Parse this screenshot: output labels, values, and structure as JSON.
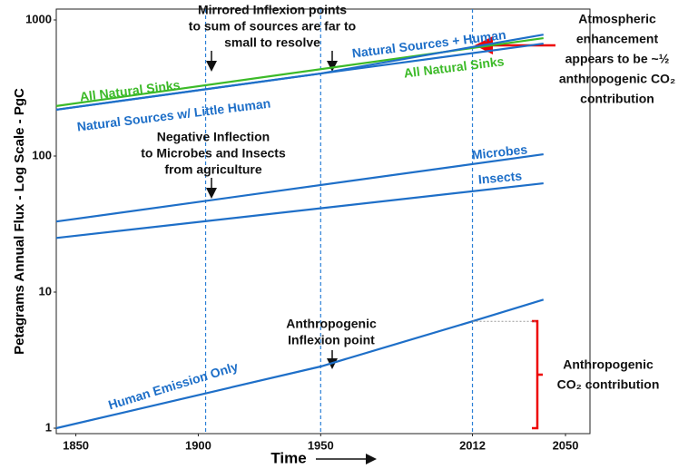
{
  "chart_data": {
    "type": "line",
    "y_label": "Petagrams  Annual Flux - Log Scale - PgC",
    "x_label": "Time",
    "log_scale": true,
    "xlim": [
      1842,
      2060
    ],
    "xticks": [
      1850,
      1900,
      1950,
      2012,
      2050
    ],
    "ylim": [
      0.912,
      1202
    ],
    "yticks": [
      1,
      10,
      100,
      1000
    ],
    "vlines": [
      1903,
      1950,
      2012
    ],
    "series": [
      {
        "name": "All Natural Sinks",
        "color": "#3cba28",
        "x": [
          1842,
          2041
        ],
        "values": [
          233,
          735
        ]
      },
      {
        "name": "Natural Sources w/ Little Human",
        "color": "#1e6fc8",
        "x": [
          1842,
          1950,
          2041
        ],
        "values": [
          219,
          404,
          670
        ]
      },
      {
        "name": "Natural Sources + Human",
        "color": "#1e6fc8",
        "x": [
          1842,
          1950,
          2041
        ],
        "values": [
          219,
          404,
          780
        ]
      },
      {
        "name": "Microbes",
        "color": "#1e6fc8",
        "x": [
          1842,
          2041
        ],
        "values": [
          33,
          103
        ]
      },
      {
        "name": "Insects",
        "color": "#1e6fc8",
        "x": [
          1842,
          2041
        ],
        "values": [
          25,
          63
        ]
      },
      {
        "name": "Human Emission Only",
        "color": "#1e6fc8",
        "x": [
          1842,
          1950,
          2012,
          2041
        ],
        "values": [
          1,
          2.84,
          6.1,
          8.8
        ]
      }
    ],
    "annotations": {
      "mirrored": [
        "Mirrored Inflexion points",
        "to sum of sources are far to",
        "small to resolve"
      ],
      "negative": [
        "Negative Inflection",
        "to Microbes and Insects",
        "from agriculture"
      ],
      "inflexion": [
        "Anthropogenic",
        "Inflexion point"
      ],
      "enhancement": [
        "Atmospheric",
        "enhancement",
        "appears to be ~½",
        "anthropogenic CO₂",
        "contribution"
      ],
      "contribution": [
        "Anthropogenic",
        "CO₂ contribution"
      ]
    }
  }
}
